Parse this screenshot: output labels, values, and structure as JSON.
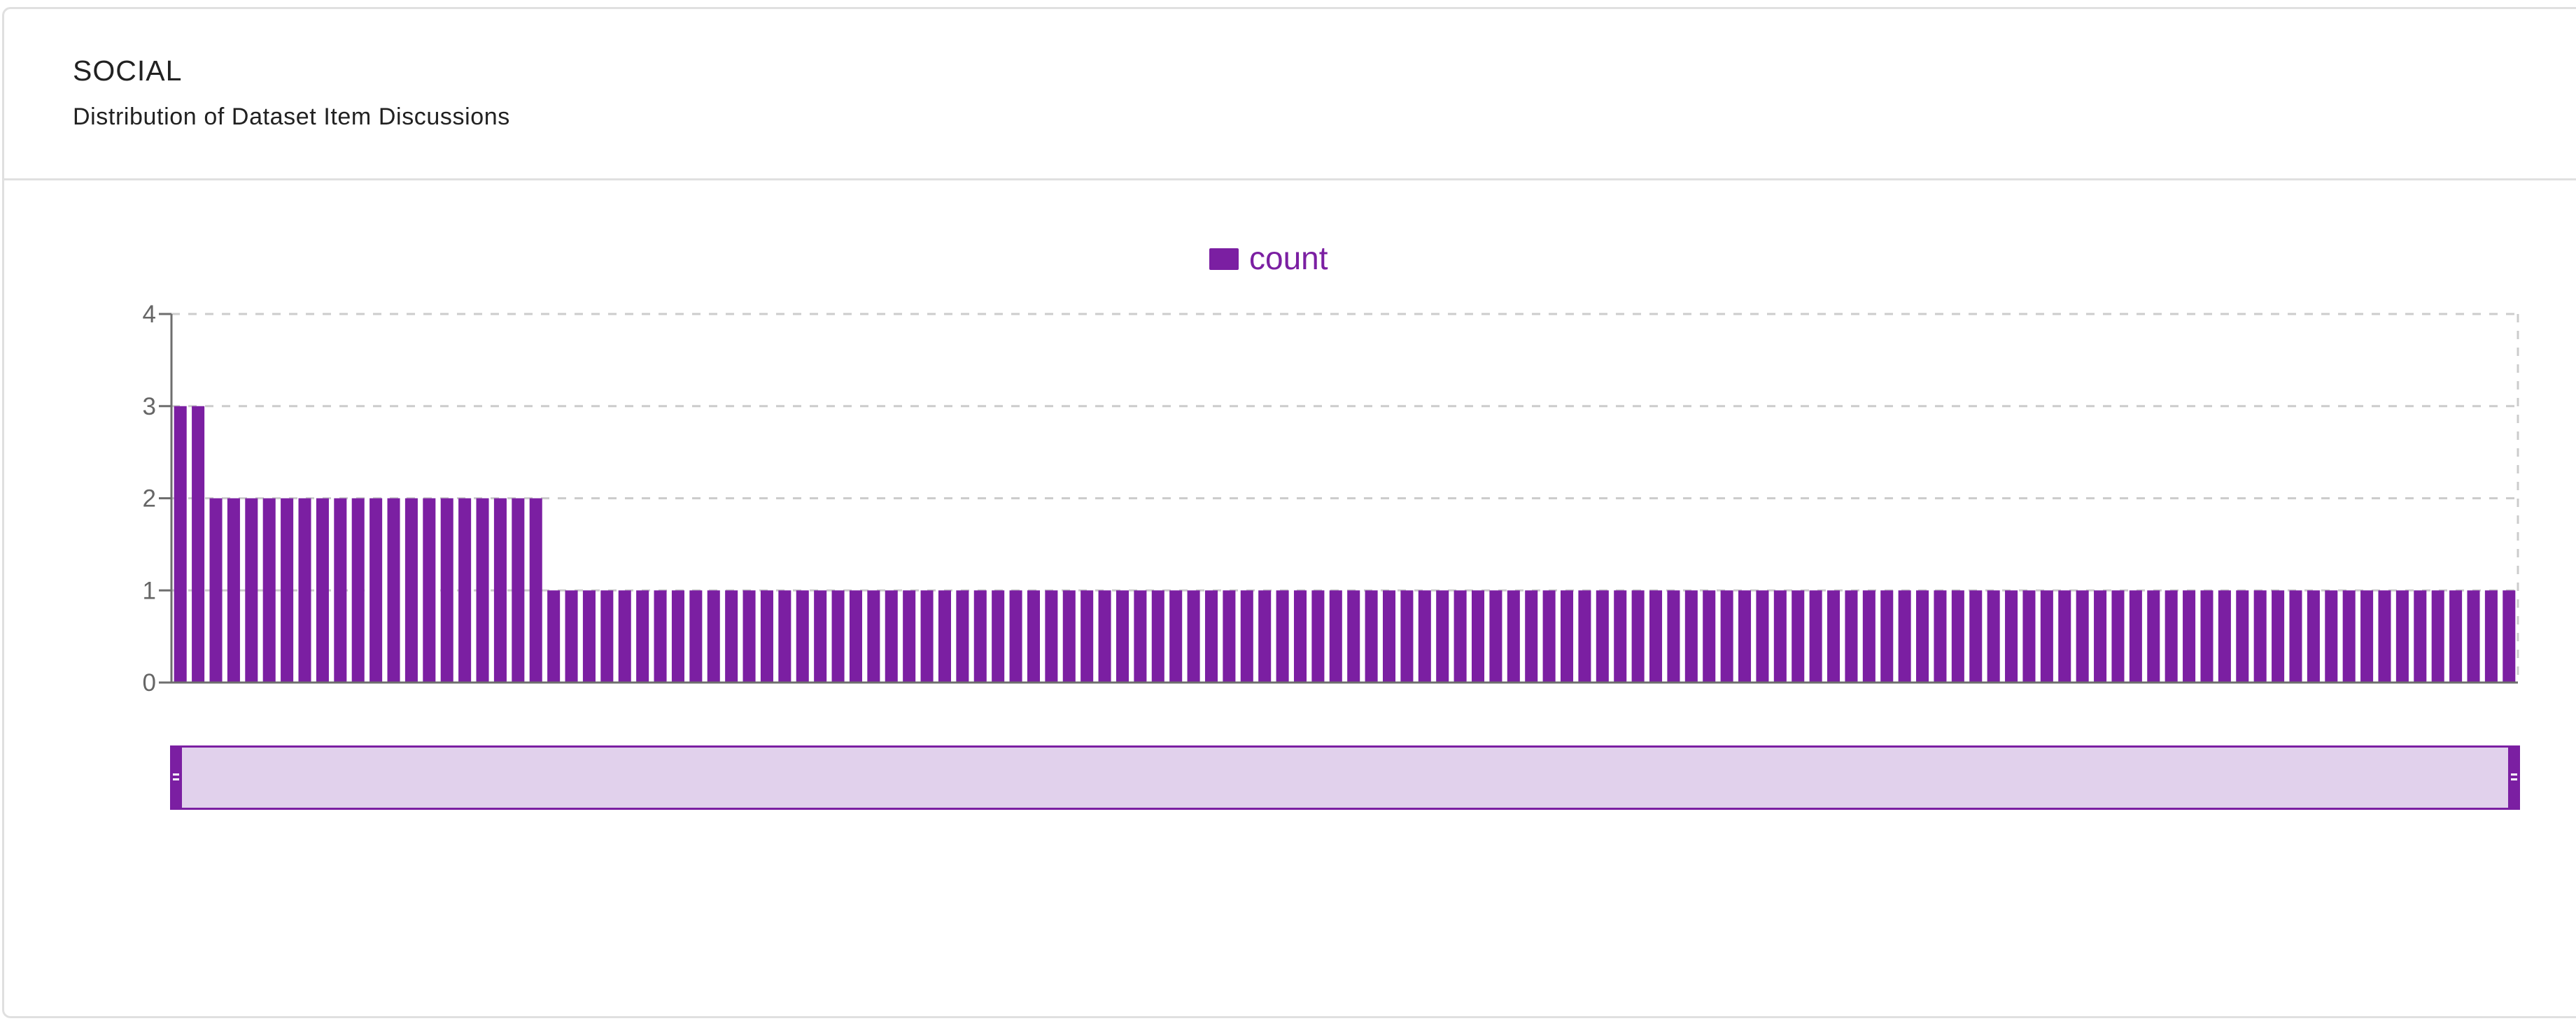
{
  "card": {
    "title": "SOCIAL",
    "subtitle": "Distribution of Dataset Item Discussions"
  },
  "colors": {
    "accent": "#7b1fa2",
    "slider_fill": "#e1d1ec",
    "grid": "#cccccc",
    "axis": "#6e6e6e",
    "tick_label": "#666666",
    "border": "#e0e0e0"
  },
  "chart_data": {
    "type": "bar",
    "title": "Distribution of Dataset Item Discussions",
    "xlabel": "",
    "ylabel": "",
    "ylim": [
      0,
      4
    ],
    "yticks": [
      0,
      1,
      2,
      3,
      4
    ],
    "grid": true,
    "legend": {
      "position": "top-center",
      "entries": [
        "count"
      ]
    },
    "series": [
      {
        "name": "count",
        "color": "#7b1fa2",
        "values": [
          3,
          3,
          2,
          2,
          2,
          2,
          2,
          2,
          2,
          2,
          2,
          2,
          2,
          2,
          2,
          2,
          2,
          2,
          2,
          2,
          2,
          1,
          1,
          1,
          1,
          1,
          1,
          1,
          1,
          1,
          1,
          1,
          1,
          1,
          1,
          1,
          1,
          1,
          1,
          1,
          1,
          1,
          1,
          1,
          1,
          1,
          1,
          1,
          1,
          1,
          1,
          1,
          1,
          1,
          1,
          1,
          1,
          1,
          1,
          1,
          1,
          1,
          1,
          1,
          1,
          1,
          1,
          1,
          1,
          1,
          1,
          1,
          1,
          1,
          1,
          1,
          1,
          1,
          1,
          1,
          1,
          1,
          1,
          1,
          1,
          1,
          1,
          1,
          1,
          1,
          1,
          1,
          1,
          1,
          1,
          1,
          1,
          1,
          1,
          1,
          1,
          1,
          1,
          1,
          1,
          1,
          1,
          1,
          1,
          1,
          1,
          1,
          1,
          1,
          1,
          1,
          1,
          1,
          1,
          1,
          1,
          1,
          1,
          1,
          1,
          1,
          1,
          1,
          1,
          1,
          1,
          1
        ]
      }
    ],
    "bar_count": 132,
    "data_zoom": {
      "start_percent": 0,
      "end_percent": 100
    }
  }
}
